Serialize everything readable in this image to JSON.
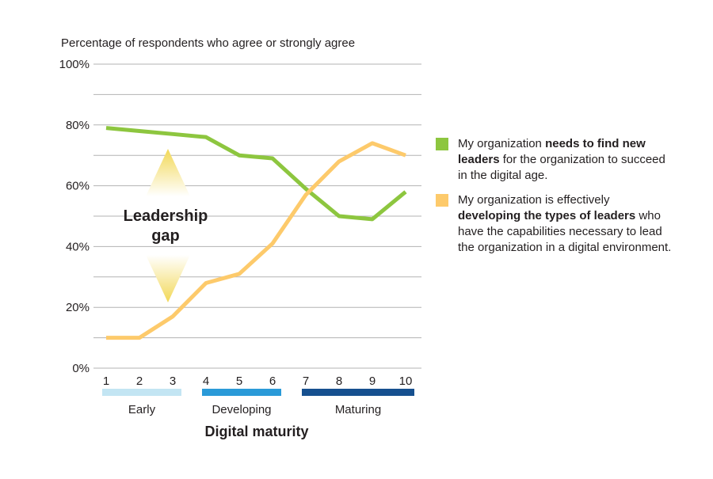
{
  "chart_data": {
    "type": "line",
    "ylabel": "Percentage of respondents who agree or strongly agree",
    "xlabel": "Digital maturity",
    "x": [
      1,
      2,
      3,
      4,
      5,
      6,
      7,
      8,
      9,
      10
    ],
    "ylim": [
      0,
      100
    ],
    "yticks": [
      "0%",
      "20%",
      "40%",
      "60%",
      "80%",
      "100%"
    ],
    "ytick_values": [
      0,
      20,
      40,
      60,
      80,
      100
    ],
    "grid": true,
    "legend_placement": "right",
    "series": [
      {
        "key": "find_new_leaders",
        "color": "#8dc63f",
        "values": [
          79,
          78,
          77,
          76,
          70,
          69,
          59,
          50,
          49,
          58
        ],
        "legend": {
          "pre": "My organization ",
          "bold": "needs to find new leaders",
          "post": " for the organization to succeed in the digital age."
        }
      },
      {
        "key": "developing_leaders",
        "color": "#fdca6b",
        "values": [
          10,
          10,
          17,
          28,
          31,
          41,
          57,
          68,
          74,
          70
        ],
        "legend": {
          "pre": "My organization is effectively ",
          "bold": "developing the types of leaders",
          "post": " who have the capabilities necessary to lead the organization in a digital environment."
        }
      }
    ],
    "maturity_groups": [
      {
        "label": "Early",
        "range": [
          1,
          3
        ],
        "color": "#c3e5f3"
      },
      {
        "label": "Developing",
        "range": [
          4,
          6
        ],
        "color": "#2a9ad8"
      },
      {
        "label": "Maturing",
        "range": [
          7,
          10
        ],
        "color": "#16508f"
      }
    ],
    "annotation": {
      "line1": "Leadership",
      "line2": "gap",
      "arrow_color": "#f4e27a"
    }
  }
}
